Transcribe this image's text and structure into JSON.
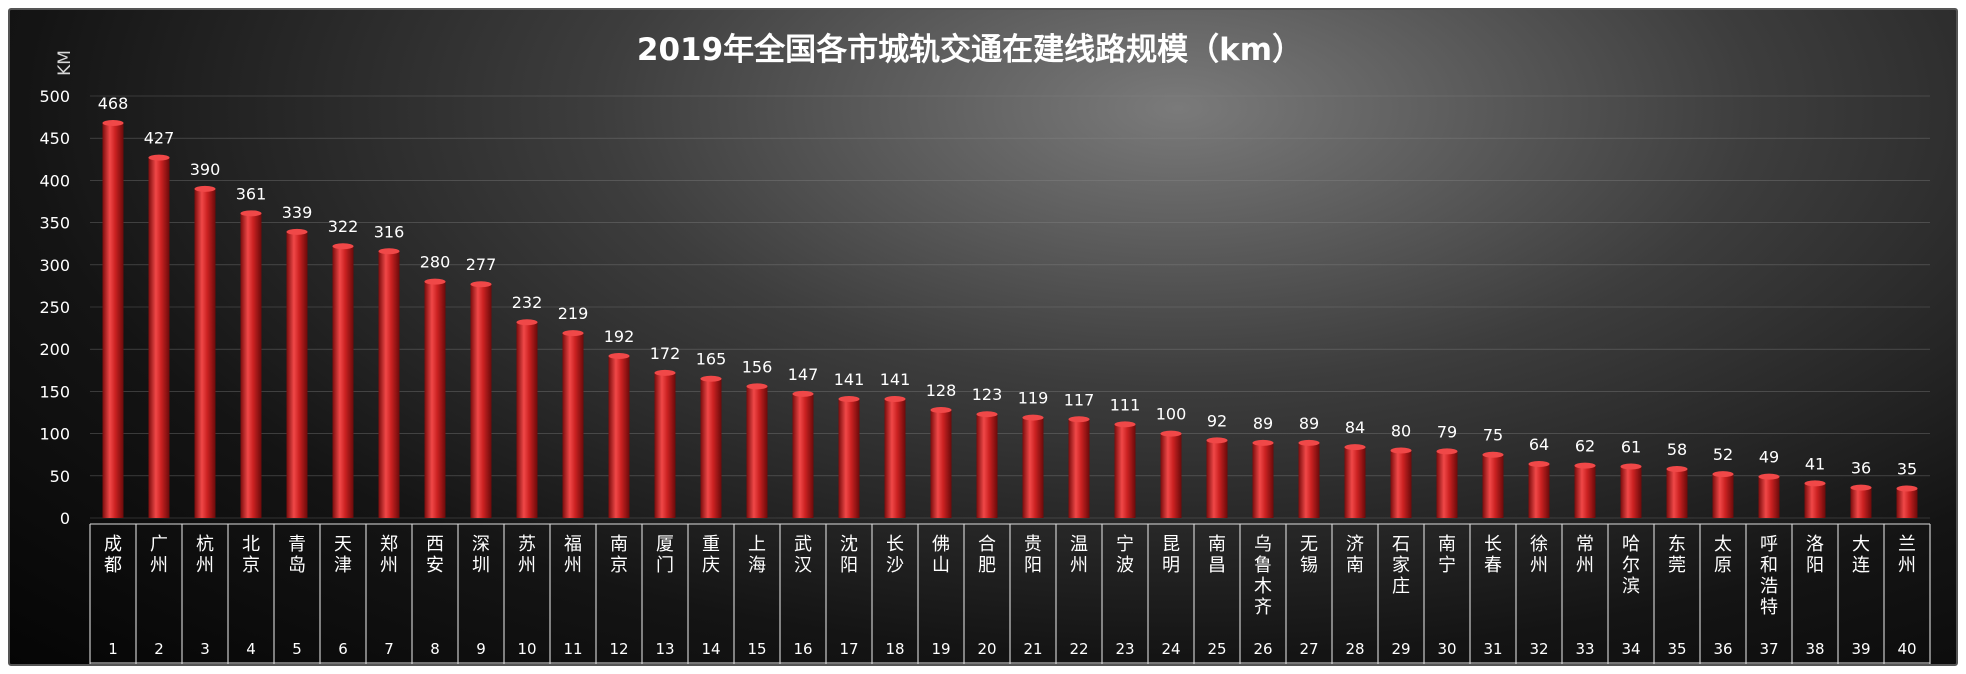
{
  "chart_data": {
    "type": "bar",
    "title": "2019年全国各市城轨交通在建线路规模（km）",
    "ylabel": "KM",
    "xlabel": "",
    "ylim": [
      0,
      500
    ],
    "yticks": [
      0,
      50,
      100,
      150,
      200,
      250,
      300,
      350,
      400,
      450,
      500
    ],
    "grid": true,
    "categories": [
      "成都",
      "广州",
      "杭州",
      "北京",
      "青岛",
      "天津",
      "郑州",
      "西安",
      "深圳",
      "苏州",
      "福州",
      "南京",
      "厦门",
      "重庆",
      "上海",
      "武汉",
      "沈阳",
      "长沙",
      "佛山",
      "合肥",
      "贵阳",
      "温州",
      "宁波",
      "昆明",
      "南昌",
      "乌鲁木齐",
      "无锡",
      "济南",
      "石家庄",
      "南宁",
      "长春",
      "徐州",
      "常州",
      "哈尔滨",
      "东莞",
      "太原",
      "呼和浩特",
      "洛阳",
      "大连",
      "兰州"
    ],
    "ranks": [
      "1",
      "2",
      "3",
      "4",
      "5",
      "6",
      "7",
      "8",
      "9",
      "10",
      "11",
      "12",
      "13",
      "14",
      "15",
      "16",
      "17",
      "18",
      "19",
      "20",
      "21",
      "22",
      "23",
      "24",
      "25",
      "26",
      "27",
      "28",
      "29",
      "30",
      "31",
      "32",
      "33",
      "34",
      "35",
      "36",
      "37",
      "38",
      "39",
      "40"
    ],
    "values": [
      468,
      427,
      390,
      361,
      339,
      322,
      316,
      280,
      277,
      232,
      219,
      192,
      172,
      165,
      156,
      147,
      141,
      141,
      128,
      123,
      119,
      117,
      111,
      100,
      92,
      89,
      89,
      84,
      80,
      79,
      75,
      64,
      62,
      61,
      58,
      52,
      49,
      41,
      36,
      35
    ],
    "colors": {
      "bar_top": "#f04848",
      "bar_mid": "#cc2222",
      "bar_bottom": "#7a0c0c"
    }
  }
}
